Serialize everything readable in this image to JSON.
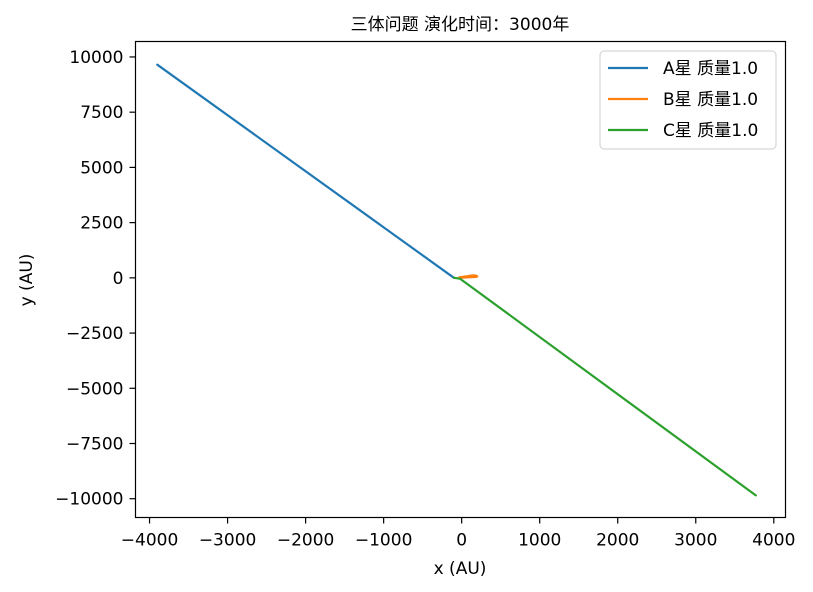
{
  "chart_data": {
    "type": "line",
    "title": "三体问题 演化时间：3000年",
    "xlabel": "x (AU)",
    "ylabel": "y (AU)",
    "xlim": [
      -4180,
      4150
    ],
    "ylim": [
      -10850,
      10700
    ],
    "xticks": [
      -4000,
      -3000,
      -2000,
      -1000,
      0,
      1000,
      2000,
      3000,
      4000
    ],
    "xtick_labels": [
      "−4000",
      "−3000",
      "−2000",
      "−1000",
      "0",
      "1000",
      "2000",
      "3000",
      "4000"
    ],
    "yticks": [
      10000,
      7500,
      5000,
      2500,
      0,
      -2500,
      -5000,
      -7500,
      -10000
    ],
    "ytick_labels": [
      "10000",
      "7500",
      "5000",
      "2500",
      "0",
      "−2500",
      "−5000",
      "−7500",
      "−10000"
    ],
    "grid": false,
    "legend_position": "top-right",
    "series": [
      {
        "name": "A星 质量1.0",
        "color": "#1f77b4",
        "x": [
          -3900,
          -100
        ],
        "y": [
          9650,
          0
        ]
      },
      {
        "name": "B星 质量1.0",
        "color": "#ff7f0e",
        "x": [
          -30,
          50,
          100,
          150,
          180,
          200,
          170,
          120,
          60,
          0,
          -20
        ],
        "y": [
          20,
          60,
          90,
          110,
          100,
          60,
          40,
          30,
          20,
          10,
          20
        ]
      },
      {
        "name": "C星 质量1.0",
        "color": "#2ca02c",
        "x": [
          -100,
          -20,
          3770
        ],
        "y": [
          0,
          -40,
          -9850
        ]
      }
    ]
  }
}
